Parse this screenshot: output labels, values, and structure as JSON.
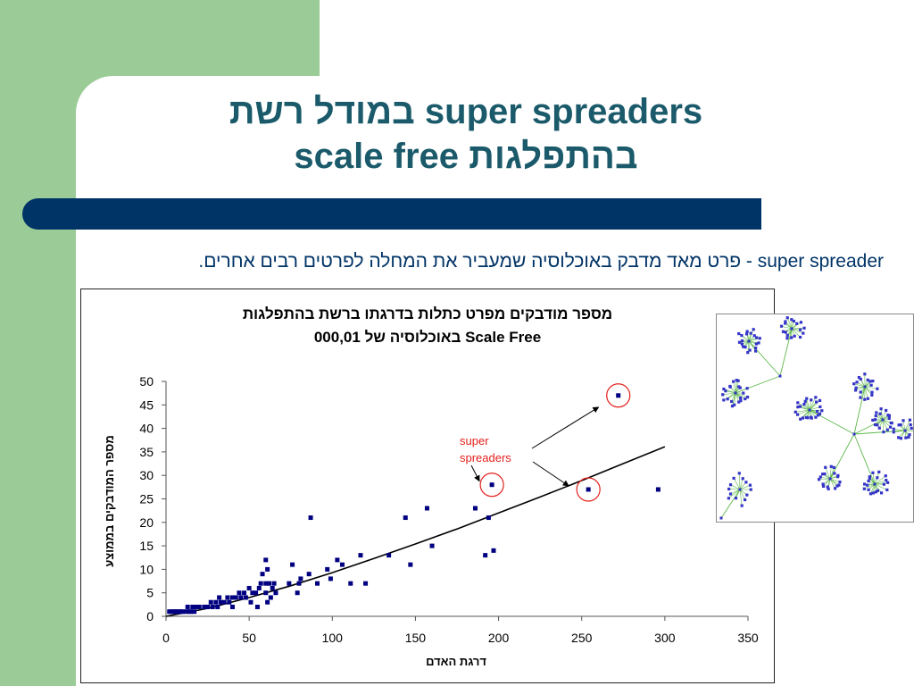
{
  "colors": {
    "side_green": "#9BCB97",
    "title_teal": "#1A5A6A",
    "bar_navy": "#003366",
    "text_navy": "#003366",
    "marker_navy": "#000080",
    "annotation_red": "#E3211C",
    "network_node_blue": "#3535C8",
    "network_edge_green": "#5DB84A"
  },
  "slide": {
    "title_line1": "super spreaders במודל רשת",
    "title_line2": "בהתפלגות scale free",
    "definition": "super spreader - פרט מאד מדבק באוכלוסיה שמעביר את המחלה לפרטים רבים אחרים."
  },
  "chart_data": {
    "type": "scatter",
    "title_lines": [
      "מספר מודבקים מפרט כתלות בדרגתו ברשת בהתפלגות",
      "Scale Free באוכלוסיה של 000,01"
    ],
    "xlabel": "דרגת האדם",
    "ylabel": "מספר המודבקים בממוצע",
    "xlim": [
      0,
      350
    ],
    "ylim": [
      0,
      50
    ],
    "xticks": [
      0,
      50,
      100,
      150,
      200,
      250,
      300,
      350
    ],
    "yticks": [
      0,
      5,
      10,
      15,
      20,
      25,
      30,
      35,
      40,
      45,
      50
    ],
    "grid": false,
    "points": [
      [
        272,
        47
      ],
      [
        296,
        27
      ],
      [
        254,
        27
      ],
      [
        196,
        28
      ],
      [
        194,
        21
      ],
      [
        197,
        14
      ],
      [
        192,
        13
      ],
      [
        186,
        23
      ],
      [
        157,
        23
      ],
      [
        144,
        21
      ],
      [
        160,
        15
      ],
      [
        147,
        11
      ],
      [
        134,
        13
      ],
      [
        117,
        13
      ],
      [
        120,
        7
      ],
      [
        111,
        7
      ],
      [
        103,
        12
      ],
      [
        106,
        11
      ],
      [
        97,
        10
      ],
      [
        99,
        8
      ],
      [
        87,
        21
      ],
      [
        91,
        7
      ],
      [
        86,
        9
      ],
      [
        81,
        8
      ],
      [
        80,
        7
      ],
      [
        79,
        5
      ],
      [
        76,
        11
      ],
      [
        74,
        7
      ],
      [
        60,
        12
      ],
      [
        58,
        9
      ],
      [
        61,
        10
      ],
      [
        60,
        7
      ],
      [
        57,
        7
      ],
      [
        62,
        7
      ],
      [
        64,
        6
      ],
      [
        65,
        7
      ],
      [
        66,
        5
      ],
      [
        63,
        4
      ],
      [
        61,
        3
      ],
      [
        55,
        2
      ],
      [
        60,
        5
      ],
      [
        56,
        6
      ],
      [
        54,
        5
      ],
      [
        50,
        6
      ],
      [
        52,
        5
      ],
      [
        48,
        4
      ],
      [
        44,
        5
      ],
      [
        47,
        5
      ],
      [
        45,
        4
      ],
      [
        51,
        3
      ],
      [
        42,
        4
      ],
      [
        40,
        4
      ],
      [
        38,
        3
      ],
      [
        40,
        2
      ],
      [
        37,
        4
      ],
      [
        35,
        3
      ],
      [
        33,
        3
      ],
      [
        32,
        4
      ],
      [
        31,
        2
      ],
      [
        30,
        3
      ],
      [
        28,
        2
      ],
      [
        27,
        3
      ],
      [
        25,
        2
      ],
      [
        23,
        2
      ],
      [
        20,
        2
      ],
      [
        18,
        2
      ],
      [
        17,
        1
      ],
      [
        16,
        2
      ],
      [
        15,
        1
      ],
      [
        14,
        1
      ],
      [
        13,
        2
      ],
      [
        12,
        1
      ],
      [
        10,
        1
      ],
      [
        9,
        1
      ],
      [
        8,
        1
      ],
      [
        7,
        1
      ],
      [
        6,
        1
      ],
      [
        5,
        1
      ],
      [
        4,
        1
      ],
      [
        3,
        1
      ],
      [
        2,
        1
      ]
    ],
    "trendline": [
      [
        0,
        0
      ],
      [
        25,
        1.7
      ],
      [
        50,
        4.0
      ],
      [
        75,
        6.5
      ],
      [
        100,
        9.3
      ],
      [
        125,
        12.3
      ],
      [
        150,
        15.4
      ],
      [
        175,
        18.6
      ],
      [
        200,
        22.0
      ],
      [
        225,
        25.4
      ],
      [
        250,
        28.9
      ],
      [
        275,
        32.5
      ],
      [
        300,
        36.1
      ]
    ],
    "annotation": {
      "text_lines": [
        "super",
        "spreaders"
      ],
      "highlighted_points": [
        [
          272,
          47
        ],
        [
          196,
          28
        ],
        [
          254,
          27
        ]
      ]
    }
  }
}
